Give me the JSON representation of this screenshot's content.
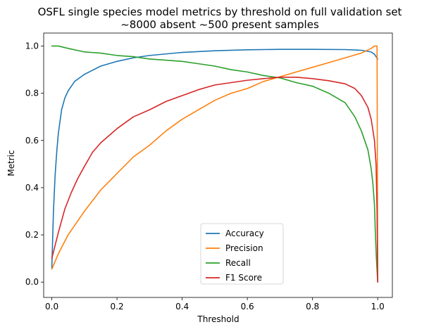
{
  "chart_data": {
    "type": "line",
    "title": "OSFL single species model metrics by threshold on full validation set",
    "subtitle": "~8000 absent ~500 present samples",
    "xlabel": "Threshold",
    "ylabel": "Metric",
    "xlim": [
      -0.025,
      1.045
    ],
    "ylim": [
      -0.065,
      1.055
    ],
    "xticks": [
      0.0,
      0.2,
      0.4,
      0.6,
      0.8,
      1.0
    ],
    "xtick_labels": [
      "0.0",
      "0.2",
      "0.4",
      "0.6",
      "0.8",
      "1.0"
    ],
    "yticks": [
      0.0,
      0.2,
      0.4,
      0.6,
      0.8,
      1.0
    ],
    "ytick_labels": [
      "0.0",
      "0.2",
      "0.4",
      "0.6",
      "0.8",
      "1.0"
    ],
    "grid": false,
    "legend_position": "bottom-center",
    "series": [
      {
        "name": "Accuracy",
        "color": "#1f77b4",
        "x": [
          0.0,
          0.005,
          0.01,
          0.015,
          0.02,
          0.03,
          0.04,
          0.05,
          0.07,
          0.1,
          0.15,
          0.2,
          0.25,
          0.3,
          0.4,
          0.5,
          0.6,
          0.7,
          0.8,
          0.9,
          0.95,
          0.98,
          0.99,
          1.0
        ],
        "y": [
          0.06,
          0.3,
          0.45,
          0.55,
          0.63,
          0.73,
          0.78,
          0.81,
          0.85,
          0.88,
          0.915,
          0.935,
          0.95,
          0.96,
          0.973,
          0.98,
          0.984,
          0.986,
          0.986,
          0.985,
          0.982,
          0.975,
          0.965,
          0.945
        ]
      },
      {
        "name": "Precision",
        "color": "#ff7f0e",
        "x": [
          0.0,
          0.02,
          0.05,
          0.1,
          0.15,
          0.2,
          0.25,
          0.3,
          0.35,
          0.4,
          0.45,
          0.5,
          0.55,
          0.6,
          0.65,
          0.7,
          0.75,
          0.8,
          0.85,
          0.9,
          0.95,
          0.98,
          0.99,
          0.995,
          0.998,
          1.0
        ],
        "y": [
          0.055,
          0.12,
          0.2,
          0.3,
          0.39,
          0.46,
          0.53,
          0.58,
          0.64,
          0.69,
          0.73,
          0.77,
          0.8,
          0.82,
          0.85,
          0.87,
          0.89,
          0.91,
          0.93,
          0.95,
          0.97,
          0.99,
          1.0,
          1.0,
          1.0,
          0.0
        ]
      },
      {
        "name": "Recall",
        "color": "#2ca02c",
        "x": [
          0.0,
          0.02,
          0.05,
          0.1,
          0.15,
          0.2,
          0.25,
          0.3,
          0.35,
          0.4,
          0.45,
          0.5,
          0.55,
          0.6,
          0.65,
          0.7,
          0.75,
          0.8,
          0.85,
          0.9,
          0.93,
          0.95,
          0.97,
          0.98,
          0.985,
          0.99,
          0.993,
          0.996,
          1.0
        ],
        "y": [
          1.0,
          1.0,
          0.99,
          0.975,
          0.97,
          0.96,
          0.955,
          0.945,
          0.94,
          0.935,
          0.925,
          0.915,
          0.9,
          0.89,
          0.875,
          0.865,
          0.845,
          0.83,
          0.8,
          0.76,
          0.7,
          0.64,
          0.56,
          0.48,
          0.42,
          0.33,
          0.2,
          0.1,
          0.0
        ]
      },
      {
        "name": "F1 Score",
        "color": "#d62728",
        "x": [
          0.0,
          0.02,
          0.04,
          0.06,
          0.08,
          0.1,
          0.125,
          0.15,
          0.2,
          0.25,
          0.3,
          0.35,
          0.4,
          0.45,
          0.5,
          0.55,
          0.6,
          0.65,
          0.7,
          0.75,
          0.8,
          0.85,
          0.9,
          0.93,
          0.95,
          0.97,
          0.98,
          0.99,
          0.995,
          0.998,
          1.0
        ],
        "y": [
          0.1,
          0.21,
          0.31,
          0.38,
          0.44,
          0.49,
          0.55,
          0.59,
          0.65,
          0.7,
          0.73,
          0.765,
          0.79,
          0.815,
          0.835,
          0.845,
          0.855,
          0.862,
          0.868,
          0.868,
          0.862,
          0.853,
          0.84,
          0.82,
          0.79,
          0.74,
          0.69,
          0.6,
          0.5,
          0.3,
          0.0
        ]
      }
    ]
  }
}
